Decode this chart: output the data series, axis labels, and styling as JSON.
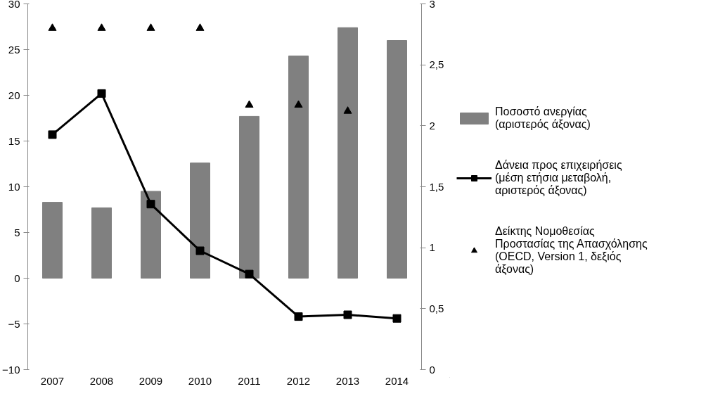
{
  "chart_data": {
    "type": "bar",
    "categories": [
      "2007",
      "2008",
      "2009",
      "2010",
      "2011",
      "2012",
      "2013",
      "2014"
    ],
    "ylim": [
      -10,
      30
    ],
    "yticks": [
      -10,
      -5,
      0,
      5,
      10,
      15,
      20,
      25,
      30
    ],
    "y2lim": [
      0,
      3
    ],
    "y2ticks": [
      0,
      {
        "value": 0.5,
        "label": "0,5"
      },
      1,
      {
        "value": 1.5,
        "label": "1,5"
      },
      2,
      {
        "value": 2.5,
        "label": "2,5"
      },
      3
    ],
    "legend": "right",
    "series": [
      {
        "name": "Ποσοστό ανεργίας (αριστερός άξονας)",
        "color": "#808080",
        "values": [
          8.3,
          7.7,
          9.5,
          12.6,
          17.7,
          24.3,
          27.4,
          26.0
        ]
      },
      {
        "name": "Δάνεια προς επιχειρήσεις (μέση ετήσια μεταβολή, αριστερός άξονας)",
        "type": "line",
        "marker": "square",
        "color": "#000000",
        "values": [
          15.7,
          20.2,
          8.1,
          3.0,
          0.45,
          -4.2,
          -4.0,
          -4.4
        ]
      },
      {
        "name": "Δείκτης Νομοθεσίας Προστασίας της Απασχόλησης (OECD, Version 1, δεξιός άξονας)",
        "type": "scatter",
        "marker": "triangle",
        "axis": "y2",
        "color": "#000000",
        "values": [
          2.8,
          2.8,
          2.8,
          2.8,
          2.17,
          2.17,
          2.12,
          null
        ]
      }
    ]
  }
}
